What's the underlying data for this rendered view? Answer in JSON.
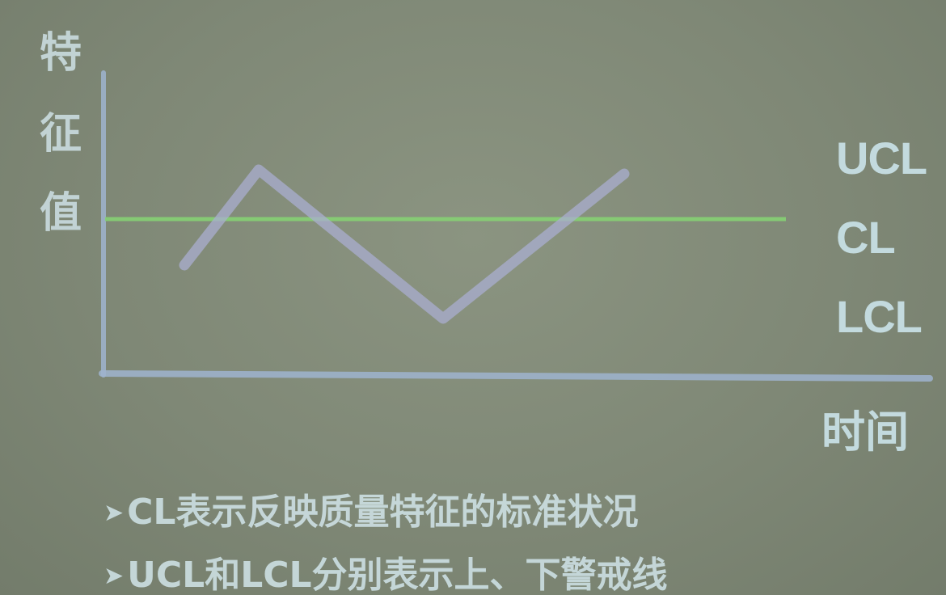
{
  "yaxis_label_chars": [
    "特",
    "征",
    "值"
  ],
  "xaxis_label": "时间",
  "levels": {
    "ucl": "UCL",
    "cl": "CL",
    "lcl": "LCL"
  },
  "notes": [
    {
      "bullet": "➤",
      "text": "CL表示反映质量特征的标准状况"
    },
    {
      "bullet": "➤",
      "text": "UCL和LCL分别表示上、下警戒线"
    }
  ],
  "colors": {
    "axis": "#9fb4cf",
    "cl_line": "#86d174",
    "trace": "#a9aed0",
    "text": "#cbe4ea"
  }
}
